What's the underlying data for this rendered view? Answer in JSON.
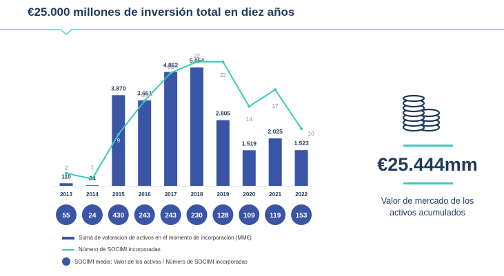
{
  "title": "€25.000 millones de inversión total en diez años",
  "kpi": {
    "value": "€25.444mm",
    "label_line1": "Valor de mercado de los",
    "label_line2": "activos acumulados"
  },
  "legend": {
    "bars": "Suma de valoración de activos en el momento de incorporación (MM€)",
    "line": "Número de SOCIMI incorporadas",
    "circles": "SOCIMI media: Valor de los activos / Número de SOCIMI incorporadas"
  },
  "colors": {
    "bar": "#3a55a5",
    "line": "#3bc9b6",
    "text": "#1f3a5a"
  },
  "chart_data": {
    "type": "bar",
    "categories": [
      "2013",
      "2014",
      "2015",
      "2016",
      "2017",
      "2018",
      "2019",
      "2020",
      "2021",
      "2022"
    ],
    "series": [
      {
        "name": "Suma de valoración de activos en el momento de incorporación (MM€)",
        "type": "bar",
        "values": [
          110,
          24,
          3870,
          3651,
          4862,
          5054,
          2805,
          1519,
          2025,
          1523
        ],
        "labels": [
          "110",
          "24",
          "3.870",
          "3.651",
          "4.862",
          "5.054",
          "2.805",
          "1.519",
          "2.025",
          "1.523"
        ]
      },
      {
        "name": "Número de SOCIMI incorporadas",
        "type": "line",
        "values": [
          2,
          1,
          9,
          15,
          20,
          22,
          22,
          14,
          17,
          10
        ]
      },
      {
        "name": "SOCIMI media: Valor de los activos / Número de SOCIMI incorporadas",
        "type": "circle",
        "values": [
          55,
          24,
          430,
          243,
          243,
          230,
          128,
          109,
          119,
          153
        ]
      }
    ]
  }
}
